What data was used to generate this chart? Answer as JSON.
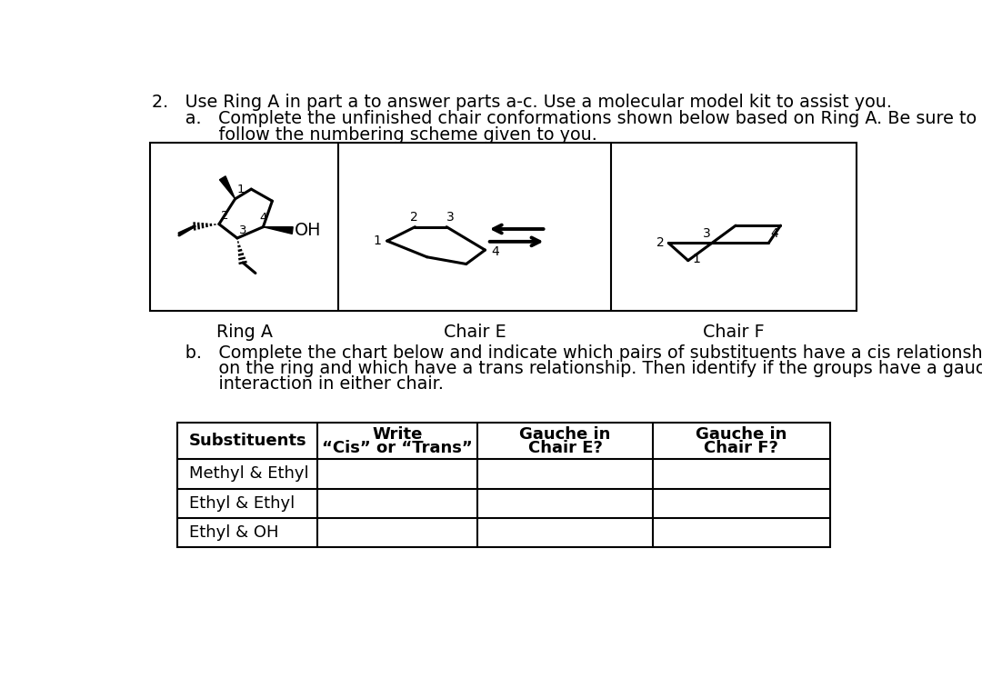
{
  "title_line1": "2.   Use Ring A in part a to answer parts a-c. Use a molecular model kit to assist you.",
  "title_line2_a": "      a.   Complete the unfinished chair conformations shown below based on Ring A. Be sure to",
  "title_line2_b": "            follow the numbering scheme given to you.",
  "part_b_line1": "      b.   Complete the chart below and indicate which pairs of substituents have a cis relationship",
  "part_b_line2": "            on the ring and which have a trans relationship. Then identify if the groups have a gauche",
  "part_b_line3": "            interaction in either chair.",
  "ring_a_label": "Ring A",
  "chair_e_label": "Chair E",
  "chair_f_label": "Chair F",
  "col_headers": [
    "Substituents",
    "Write\n“Cis” or “Trans”",
    "Gauche in\nChair E?",
    "Gauche in\nChair F?"
  ],
  "rows": [
    "Methyl & Ethyl",
    "Ethyl & Ethyl",
    "Ethyl & OH"
  ],
  "bg_color": "#ffffff",
  "text_color": "#000000"
}
